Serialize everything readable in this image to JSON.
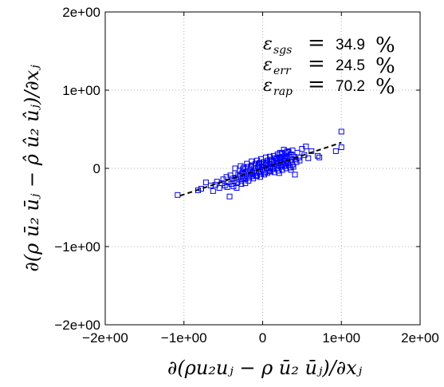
{
  "chart_data": {
    "type": "scatter",
    "title": "",
    "xlabel": "∂(ρu₂uⱼ − ρ ū₂ ūⱼ)/∂xⱼ",
    "ylabel": "∂(ρ ū₂ ūⱼ − ρ̂ û₂ ûⱼ)/∂xⱼ",
    "xlim": [
      -2,
      2
    ],
    "ylim": [
      -2,
      2
    ],
    "x_ticks": [
      "−2e+00",
      "−1e+00",
      "0",
      "1e+00",
      "2e+00"
    ],
    "y_ticks": [
      "−2e+00",
      "−1e+00",
      "0",
      "1e+00",
      "2e+00"
    ],
    "grid": true,
    "marker": "square",
    "marker_color": "#0000ff",
    "fit_line": {
      "style": "dashed",
      "color": "#000000",
      "x": [
        -1.05,
        1.0
      ],
      "y": [
        -0.35,
        0.33
      ]
    },
    "annotations": [
      {
        "symbol": "ε",
        "sub": "sgs",
        "value": "34.9",
        "unit": "%"
      },
      {
        "symbol": "ε",
        "sub": "err",
        "value": "24.5",
        "unit": "%"
      },
      {
        "symbol": "ε",
        "sub": "rap",
        "value": "70.2",
        "unit": "%"
      }
    ],
    "points": [
      [
        -1.08,
        -0.34
      ],
      [
        -0.82,
        -0.28
      ],
      [
        -0.78,
        -0.26
      ],
      [
        -0.72,
        -0.18
      ],
      [
        -0.66,
        -0.22
      ],
      [
        -0.63,
        -0.29
      ],
      [
        -0.6,
        -0.21
      ],
      [
        -0.58,
        -0.17
      ],
      [
        -0.55,
        -0.25
      ],
      [
        -0.52,
        -0.19
      ],
      [
        -0.5,
        -0.14
      ],
      [
        -0.48,
        -0.22
      ],
      [
        -0.46,
        -0.11
      ],
      [
        -0.44,
        -0.17
      ],
      [
        -0.42,
        -0.36
      ],
      [
        -0.41,
        -0.09
      ],
      [
        -0.4,
        -0.2
      ],
      [
        -0.38,
        -0.13
      ],
      [
        -0.36,
        -0.16
      ],
      [
        -0.35,
        -0.06
      ],
      [
        -0.34,
        -0.12
      ],
      [
        -0.32,
        -0.18
      ],
      [
        -0.31,
        -0.08
      ],
      [
        -0.3,
        -0.14
      ],
      [
        -0.29,
        -0.03
      ],
      [
        -0.28,
        -0.1
      ],
      [
        -0.27,
        -0.16
      ],
      [
        -0.26,
        -0.06
      ],
      [
        -0.25,
        -0.12
      ],
      [
        -0.24,
        0.01
      ],
      [
        -0.23,
        -0.08
      ],
      [
        -0.22,
        -0.14
      ],
      [
        -0.21,
        -0.04
      ],
      [
        -0.2,
        -0.1
      ],
      [
        -0.19,
        0.02
      ],
      [
        -0.18,
        -0.06
      ],
      [
        -0.17,
        -0.12
      ],
      [
        -0.16,
        -0.02
      ],
      [
        -0.15,
        -0.08
      ],
      [
        -0.14,
        0.04
      ],
      [
        -0.13,
        -0.05
      ],
      [
        -0.12,
        -0.1
      ],
      [
        -0.11,
        0.0
      ],
      [
        -0.1,
        -0.06
      ],
      [
        -0.09,
        0.06
      ],
      [
        -0.08,
        -0.03
      ],
      [
        -0.07,
        -0.09
      ],
      [
        -0.06,
        0.02
      ],
      [
        -0.05,
        -0.04
      ],
      [
        -0.04,
        0.07
      ],
      [
        -0.03,
        -0.01
      ],
      [
        -0.02,
        -0.07
      ],
      [
        -0.01,
        0.03
      ],
      [
        0.0,
        -0.02
      ],
      [
        0.01,
        0.08
      ],
      [
        0.02,
        0.01
      ],
      [
        0.03,
        -0.05
      ],
      [
        0.04,
        0.05
      ],
      [
        0.05,
        0.0
      ],
      [
        0.06,
        0.1
      ],
      [
        0.07,
        0.03
      ],
      [
        0.08,
        -0.03
      ],
      [
        0.09,
        0.06
      ],
      [
        0.1,
        0.01
      ],
      [
        0.11,
        0.11
      ],
      [
        0.12,
        0.05
      ],
      [
        0.13,
        -0.01
      ],
      [
        0.14,
        0.08
      ],
      [
        0.15,
        0.03
      ],
      [
        0.16,
        0.13
      ],
      [
        0.17,
        0.06
      ],
      [
        0.18,
        0.0
      ],
      [
        0.19,
        0.1
      ],
      [
        0.2,
        0.04
      ],
      [
        0.21,
        0.14
      ],
      [
        0.22,
        0.07
      ],
      [
        0.23,
        0.02
      ],
      [
        0.24,
        0.11
      ],
      [
        0.25,
        0.05
      ],
      [
        0.26,
        0.15
      ],
      [
        0.27,
        0.09
      ],
      [
        0.28,
        0.03
      ],
      [
        0.29,
        0.13
      ],
      [
        0.3,
        0.06
      ],
      [
        0.31,
        0.16
      ],
      [
        0.32,
        0.1
      ],
      [
        0.33,
        0.04
      ],
      [
        0.34,
        0.14
      ],
      [
        0.35,
        0.08
      ],
      [
        0.36,
        0.18
      ],
      [
        0.37,
        0.11
      ],
      [
        0.38,
        0.05
      ],
      [
        0.4,
        0.15
      ],
      [
        0.41,
        -0.08
      ],
      [
        0.42,
        0.12
      ],
      [
        0.44,
        0.2
      ],
      [
        0.46,
        0.14
      ],
      [
        0.5,
        0.25
      ],
      [
        0.53,
        0.17
      ],
      [
        0.55,
        0.28
      ],
      [
        0.58,
        0.13
      ],
      [
        0.62,
        0.22
      ],
      [
        0.7,
        0.16
      ],
      [
        0.72,
        0.14
      ],
      [
        0.93,
        0.22
      ],
      [
        1.0,
        0.47
      ],
      [
        1.0,
        0.27
      ],
      [
        -0.45,
        -0.24
      ],
      [
        -0.37,
        -0.23
      ],
      [
        -0.33,
        -0.25
      ],
      [
        -0.27,
        -0.2
      ],
      [
        -0.22,
        -0.19
      ],
      [
        -0.18,
        -0.16
      ],
      [
        -0.12,
        -0.13
      ],
      [
        -0.08,
        -0.1
      ],
      [
        -0.03,
        -0.11
      ],
      [
        0.02,
        -0.08
      ],
      [
        0.06,
        -0.06
      ],
      [
        0.1,
        -0.04
      ],
      [
        0.15,
        -0.05
      ],
      [
        0.2,
        -0.03
      ],
      [
        0.25,
        -0.02
      ],
      [
        0.3,
        0.0
      ],
      [
        0.35,
        0.01
      ],
      [
        0.39,
        0.02
      ],
      [
        -0.35,
        0.0
      ],
      [
        -0.28,
        0.03
      ],
      [
        -0.2,
        0.06
      ],
      [
        -0.14,
        0.09
      ],
      [
        -0.07,
        0.1
      ],
      [
        -0.02,
        0.12
      ],
      [
        0.04,
        0.14
      ],
      [
        0.09,
        0.15
      ],
      [
        0.14,
        0.16
      ],
      [
        0.19,
        0.18
      ],
      [
        0.24,
        0.19
      ],
      [
        0.29,
        0.2
      ],
      [
        0.33,
        0.21
      ],
      [
        0.38,
        0.23
      ],
      [
        0.43,
        0.08
      ],
      [
        0.47,
        0.1
      ],
      [
        0.36,
        -0.02
      ],
      [
        0.31,
        0.22
      ],
      [
        0.27,
        0.24
      ],
      [
        0.22,
        0.2
      ],
      [
        -0.25,
        -0.01
      ],
      [
        -0.15,
        0.02
      ],
      [
        -0.05,
        0.05
      ],
      [
        0.05,
        0.07
      ],
      [
        0.12,
        0.09
      ],
      [
        0.18,
        0.12
      ],
      [
        0.23,
        0.13
      ],
      [
        0.28,
        0.12
      ],
      [
        0.32,
        0.07
      ],
      [
        0.21,
        -0.06
      ]
    ]
  }
}
